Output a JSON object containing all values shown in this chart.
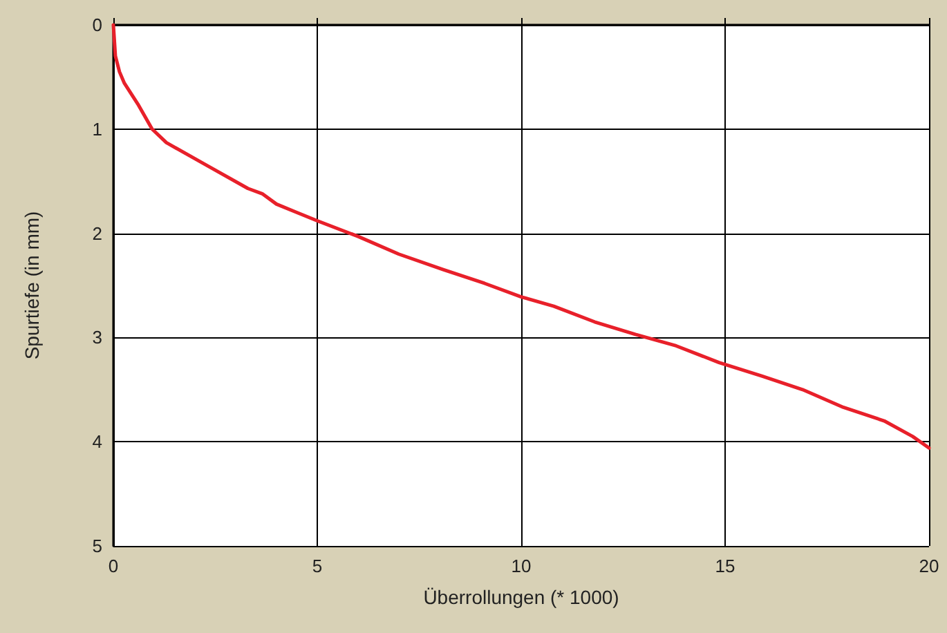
{
  "chart_data": {
    "type": "line",
    "xlabel": "Überrollungen (* 1000)",
    "ylabel": "Spurtiefe (in mm)",
    "xlim": [
      0,
      20
    ],
    "xticks": [
      0,
      5,
      10,
      15,
      20
    ],
    "ylim": [
      5,
      0
    ],
    "yticks": [
      0,
      1,
      2,
      3,
      4,
      5
    ],
    "grid": true,
    "marker": "none",
    "line_style": "solid",
    "series": [
      {
        "color": "#e8202a",
        "x": [
          0,
          0.05,
          0.15,
          0.27,
          0.6,
          0.95,
          1.3,
          2.3,
          3.3,
          3.65,
          4,
          4.5,
          5,
          6,
          7,
          8.1,
          9.1,
          10,
          10.8,
          11.8,
          12.8,
          13.8,
          14.85,
          15.9,
          16.9,
          17.9,
          18.9,
          19.6,
          20
        ],
        "values": [
          0,
          0.3,
          0.45,
          0.56,
          0.76,
          1.0,
          1.13,
          1.35,
          1.57,
          1.62,
          1.72,
          1.8,
          1.88,
          2.03,
          2.2,
          2.35,
          2.48,
          2.61,
          2.7,
          2.85,
          2.97,
          3.08,
          3.24,
          3.37,
          3.5,
          3.67,
          3.8,
          3.95,
          4.06
        ]
      }
    ]
  }
}
